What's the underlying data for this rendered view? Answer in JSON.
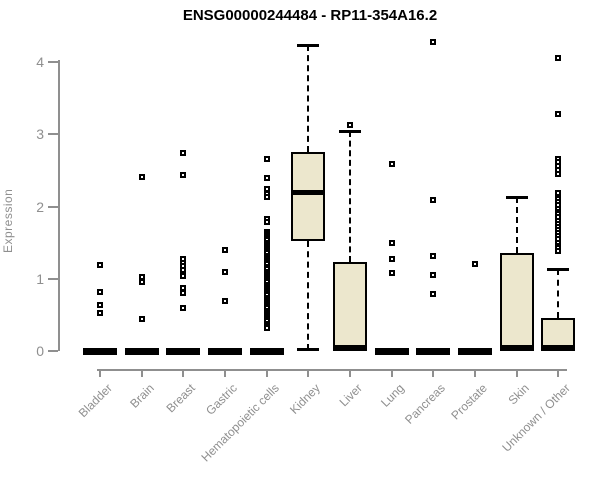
{
  "chart_data": {
    "type": "boxplot",
    "title": "ENSG00000244484 - RP11-354A16.2",
    "ylabel": "Expression",
    "xlabel": "",
    "yticks": [
      0,
      1,
      2,
      3,
      4
    ],
    "ylim": [
      0,
      4.35
    ],
    "grid": false,
    "legend": "none",
    "box_fill_color": "#ece7cd",
    "box_line_color": "#000000",
    "axis_color": "#8f8f8f",
    "categories": [
      "Bladder",
      "Brain",
      "Breast",
      "Gastric",
      "Hematopoietic cells",
      "Kidney",
      "Liver",
      "Lung",
      "Pancreas",
      "Prostate",
      "Skin",
      "Unknown / Other"
    ],
    "boxes": [
      {
        "category": "Bladder",
        "q1": 0,
        "median": 0,
        "q3": 0,
        "whisker_low": 0,
        "whisker_high": 0,
        "outliers": [
          1.19,
          0.82,
          0.64,
          0.53
        ]
      },
      {
        "category": "Brain",
        "q1": 0,
        "median": 0,
        "q3": 0,
        "whisker_low": 0,
        "whisker_high": 0,
        "outliers": [
          2.41,
          1.02,
          0.95,
          0.44
        ]
      },
      {
        "category": "Breast",
        "q1": 0,
        "median": 0,
        "q3": 0,
        "whisker_low": 0,
        "whisker_high": 0,
        "outliers": [
          2.74,
          2.44,
          1.27,
          1.22,
          1.17,
          1.12,
          1.04,
          0.87,
          0.8,
          0.6
        ]
      },
      {
        "category": "Gastric",
        "q1": 0,
        "median": 0,
        "q3": 0,
        "whisker_low": 0,
        "whisker_high": 0,
        "outliers": [
          1.4,
          1.09,
          0.69
        ]
      },
      {
        "category": "Hematopoietic cells",
        "q1": 0,
        "median": 0,
        "q3": 0,
        "whisker_low": 0,
        "whisker_high": 0,
        "outliers": [
          2.66,
          2.39,
          2.24,
          2.17,
          2.13,
          1.83,
          1.78,
          1.65,
          1.62,
          1.59,
          1.56,
          1.53,
          1.5,
          1.47,
          1.44,
          1.41,
          1.38,
          1.35,
          1.32,
          1.29,
          1.26,
          1.23,
          1.2,
          1.16,
          1.13,
          1.1,
          1.07,
          1.04,
          1.01,
          0.98,
          0.95,
          0.92,
          0.89,
          0.86,
          0.83,
          0.8,
          0.77,
          0.74,
          0.71,
          0.68,
          0.65,
          0.62,
          0.59,
          0.56,
          0.53,
          0.5,
          0.47,
          0.44,
          0.41,
          0.38,
          0.35,
          0.32
        ]
      },
      {
        "category": "Kidney",
        "q1": 1.52,
        "median": 2.2,
        "q3": 2.76,
        "whisker_low": 0.02,
        "whisker_high": 4.23,
        "outliers": []
      },
      {
        "category": "Liver",
        "q1": 0,
        "median": 0,
        "q3": 1.23,
        "whisker_low": 0,
        "whisker_high": 3.04,
        "outliers": [
          3.13
        ]
      },
      {
        "category": "Lung",
        "q1": 0,
        "median": 0,
        "q3": 0,
        "whisker_low": 0,
        "whisker_high": 0,
        "outliers": [
          2.59,
          1.49,
          1.28,
          1.08
        ]
      },
      {
        "category": "Pancreas",
        "q1": 0,
        "median": 0,
        "q3": 0,
        "whisker_low": 0,
        "whisker_high": 0,
        "outliers": [
          4.28,
          2.09,
          1.31,
          1.05,
          0.79
        ]
      },
      {
        "category": "Prostate",
        "q1": 0,
        "median": 0,
        "q3": 0,
        "whisker_low": 0,
        "whisker_high": 0,
        "outliers": [
          1.2
        ]
      },
      {
        "category": "Skin",
        "q1": 0,
        "median": 0,
        "q3": 1.36,
        "whisker_low": 0,
        "whisker_high": 2.13,
        "outliers": []
      },
      {
        "category": "Unknown / Other",
        "q1": 0,
        "median": 0,
        "q3": 0.46,
        "whisker_low": 0,
        "whisker_high": 1.13,
        "outliers": [
          4.06,
          3.28,
          2.66,
          2.61,
          2.56,
          2.51,
          2.45,
          2.18,
          2.1,
          2.06,
          2.02,
          1.97,
          1.93,
          1.89,
          1.85,
          1.8,
          1.76,
          1.72,
          1.68,
          1.63,
          1.59,
          1.55,
          1.5,
          1.46,
          1.42,
          1.38
        ]
      }
    ]
  }
}
